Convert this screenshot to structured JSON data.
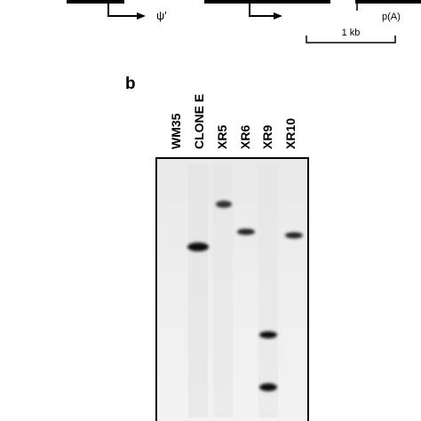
{
  "panel_a": {
    "promoter_label": "ψ'",
    "polya_label": "p(A)",
    "scale_label": "1 kb"
  },
  "panel_b": {
    "label": "b",
    "lanes": [
      "WM35",
      "CLONE E",
      "XR5",
      "XR6",
      "XR9",
      "XR10"
    ]
  }
}
